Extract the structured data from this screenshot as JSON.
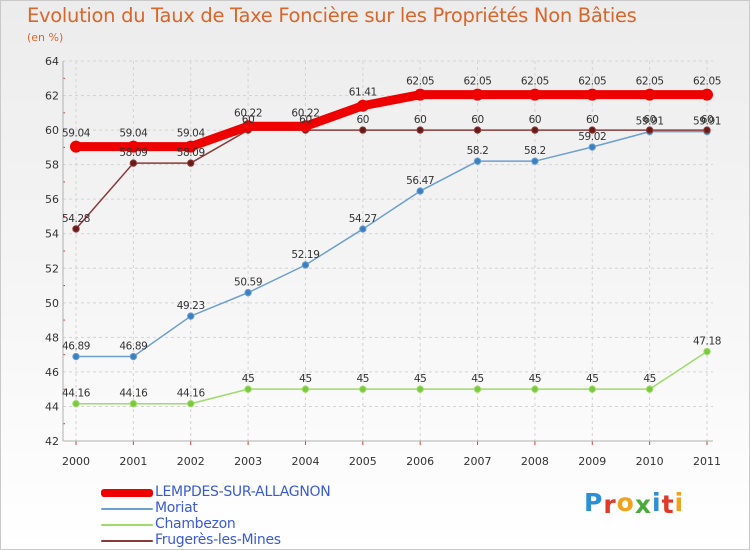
{
  "title": "Evolution du Taux de Taxe Foncière sur les Propriétés Non Bâties",
  "subtitle": "(en %)",
  "logo": {
    "letters": [
      "P",
      "r",
      "o",
      "x",
      "i",
      "t",
      "i"
    ],
    "colors": [
      "#2a8fd4",
      "#e03a2a",
      "#f0a21c",
      "#4aab3c",
      "#2a8fd4",
      "#e03a2a",
      "#f0a21c"
    ]
  },
  "chart_data": {
    "type": "line",
    "title": "Evolution du Taux de Taxe Foncière sur les Propriétés Non Bâties",
    "ylabel": "(en %)",
    "x": [
      "2000",
      "2001",
      "2002",
      "2003",
      "2004",
      "2005",
      "2006",
      "2007",
      "2008",
      "2009",
      "2010",
      "2011"
    ],
    "ylim": [
      42,
      64
    ],
    "yticks": [
      "42",
      "44",
      "46",
      "48",
      "50",
      "52",
      "54",
      "56",
      "58",
      "60",
      "62",
      "64"
    ],
    "series": [
      {
        "name": "LEMPDES-SUR-ALLAGNON",
        "color": "#ee0000",
        "thick": true,
        "values": [
          59.04,
          59.04,
          59.04,
          60.22,
          60.22,
          61.41,
          62.05,
          62.05,
          62.05,
          62.05,
          62.05,
          62.05
        ],
        "labels": [
          "59.04",
          "59.04",
          "59.04",
          "60.22",
          "60.22",
          "61.41",
          "62.05",
          "62.05",
          "62.05",
          "62.05",
          "62.05",
          "62.05"
        ]
      },
      {
        "name": "Moriat",
        "color": "#6d9fd0",
        "point": "#3a7fc2",
        "values": [
          46.89,
          46.89,
          49.23,
          50.59,
          52.19,
          54.27,
          56.47,
          58.2,
          58.2,
          59.02,
          59.91,
          59.91
        ],
        "labels": [
          "46.89",
          "46.89",
          "49.23",
          "50.59",
          "52.19",
          "54.27",
          "56.47",
          "58.2",
          "58.2",
          "59.02",
          "59.91",
          "59.91"
        ]
      },
      {
        "name": "Chambezon",
        "color": "#9edc6a",
        "point": "#7cc83c",
        "values": [
          44.16,
          44.16,
          44.16,
          45,
          45,
          45,
          45,
          45,
          45,
          45,
          45,
          47.18
        ],
        "labels": [
          "44.16",
          "44.16",
          "44.16",
          "45",
          "45",
          "45",
          "45",
          "45",
          "45",
          "45",
          "45",
          "47.18"
        ]
      },
      {
        "name": "Frugerès-les-Mines",
        "color": "#8b3a3a",
        "point": "#6b1a1a",
        "values": [
          54.28,
          58.09,
          58.09,
          60,
          60,
          60,
          60,
          60,
          60,
          60,
          60,
          60
        ],
        "labels": [
          "54.28",
          "58.09",
          "58.09",
          "60",
          "60",
          "60",
          "60",
          "60",
          "60",
          "60",
          "60",
          "60"
        ]
      }
    ]
  }
}
